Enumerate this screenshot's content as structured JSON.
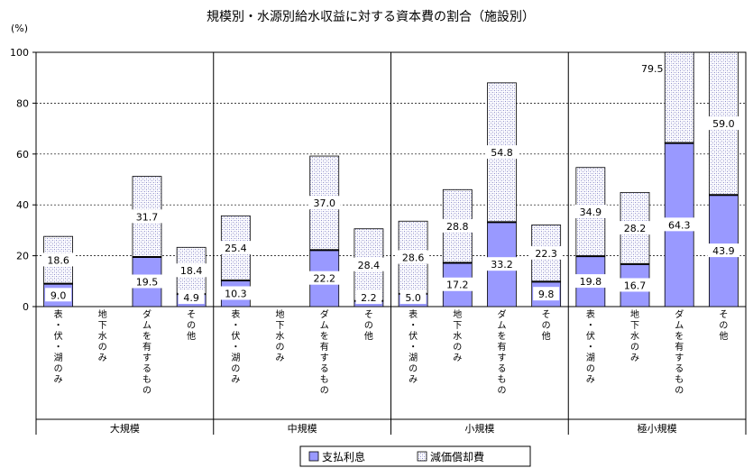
{
  "chart_data": {
    "type": "bar",
    "stacked": true,
    "title": "規模別・水源別給水収益に対する資本費の割合（施設別）",
    "ylabel": "(%)",
    "ylim": [
      0,
      100
    ],
    "yticks": [
      0,
      20,
      40,
      60,
      80,
      100
    ],
    "grid": true,
    "legend_position": "bottom",
    "groups": [
      {
        "name": "大規模",
        "categories": [
          {
            "label": "表・伏・湖のみ",
            "values": [
              9.0,
              18.6
            ]
          },
          {
            "label": "地下水のみ",
            "values": [
              null,
              null
            ]
          },
          {
            "label": "ダムを有するもの",
            "values": [
              19.5,
              31.7
            ]
          },
          {
            "label": "その他",
            "values": [
              4.9,
              18.4
            ]
          }
        ]
      },
      {
        "name": "中規模",
        "categories": [
          {
            "label": "表・伏・湖のみ",
            "values": [
              10.3,
              25.4
            ]
          },
          {
            "label": "地下水のみ",
            "values": [
              null,
              null
            ]
          },
          {
            "label": "ダムを有するもの",
            "values": [
              22.2,
              37.0
            ]
          },
          {
            "label": "その他",
            "values": [
              2.2,
              28.4
            ]
          }
        ]
      },
      {
        "name": "小規模",
        "categories": [
          {
            "label": "表・伏・湖のみ",
            "values": [
              5.0,
              28.6
            ]
          },
          {
            "label": "地下水のみ",
            "values": [
              17.2,
              28.8
            ]
          },
          {
            "label": "ダムを有するもの",
            "values": [
              33.2,
              54.8
            ]
          },
          {
            "label": "その他",
            "values": [
              9.8,
              22.3
            ]
          }
        ]
      },
      {
        "name": "極小規模",
        "categories": [
          {
            "label": "表・伏・湖のみ",
            "values": [
              19.8,
              34.9
            ]
          },
          {
            "label": "地下水のみ",
            "values": [
              16.7,
              28.2
            ]
          },
          {
            "label": "ダムを有するもの",
            "values": [
              64.3,
              79.5
            ]
          },
          {
            "label": "その他",
            "values": [
              43.9,
              59.0
            ]
          }
        ]
      }
    ],
    "series": [
      {
        "name": "支払利息",
        "color": "#9999ff"
      },
      {
        "name": "減価償却費",
        "color": "#dcdcf2"
      }
    ]
  }
}
